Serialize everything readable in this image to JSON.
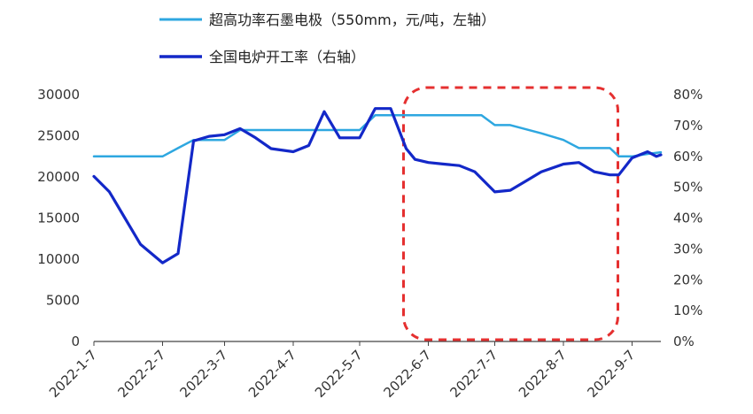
{
  "chart_data": {
    "type": "line",
    "legend": {
      "placement": "top-left",
      "entries": [
        {
          "label": "超高功率石墨电极（550mm，元/吨，左轴）",
          "color": "#2ea7e0"
        },
        {
          "label": "全国电炉开工率（右轴）",
          "color": "#1328c8"
        }
      ]
    },
    "x_tick_labels": [
      "2022-1-7",
      "2022-2-7",
      "2022-3-7",
      "2022-4-7",
      "2022-5-7",
      "2022-6-7",
      "2022-7-7",
      "2022-8-7",
      "2022-9-7"
    ],
    "left_axis": {
      "ylim": [
        0,
        30000
      ],
      "ticks": [
        "0",
        "5000",
        "10000",
        "15000",
        "20000",
        "25000",
        "30000"
      ]
    },
    "right_axis": {
      "ylim": [
        0,
        80
      ],
      "ticks": [
        "0%",
        "10%",
        "20%",
        "30%",
        "40%",
        "50%",
        "60%",
        "70%",
        "80%"
      ]
    },
    "series": [
      {
        "name": "超高功率石墨电极（550mm，元/吨，左轴）",
        "axis": "left",
        "color": "#2ea7e0",
        "x": [
          "2022-1-7",
          "2022-2-1",
          "2022-2-7",
          "2022-2-14",
          "2022-2-21",
          "2022-3-7",
          "2022-3-14",
          "2022-3-28",
          "2022-4-7",
          "2022-4-14",
          "2022-4-21",
          "2022-5-7",
          "2022-5-14",
          "2022-5-28",
          "2022-6-7",
          "2022-6-14",
          "2022-6-21",
          "2022-7-1",
          "2022-7-7",
          "2022-7-14",
          "2022-7-28",
          "2022-8-7",
          "2022-8-14",
          "2022-8-28",
          "2022-9-1",
          "2022-9-7",
          "2022-9-14",
          "2022-9-20"
        ],
        "values": [
          22500,
          22500,
          22500,
          23500,
          24500,
          24500,
          25700,
          25700,
          25700,
          25700,
          25700,
          25700,
          27500,
          27500,
          27500,
          27500,
          27500,
          27500,
          26300,
          26300,
          25300,
          24500,
          23500,
          23500,
          22500,
          22500,
          22800,
          23000
        ]
      },
      {
        "name": "全国电炉开工率（右轴）",
        "axis": "right",
        "color": "#1328c8",
        "x": [
          "2022-1-7",
          "2022-1-14",
          "2022-1-21",
          "2022-1-28",
          "2022-2-7",
          "2022-2-14",
          "2022-2-21",
          "2022-2-28",
          "2022-3-7",
          "2022-3-14",
          "2022-3-21",
          "2022-3-28",
          "2022-4-7",
          "2022-4-14",
          "2022-4-21",
          "2022-4-28",
          "2022-5-7",
          "2022-5-14",
          "2022-5-21",
          "2022-5-28",
          "2022-6-1",
          "2022-6-7",
          "2022-6-14",
          "2022-6-21",
          "2022-6-28",
          "2022-7-7",
          "2022-7-14",
          "2022-7-21",
          "2022-7-28",
          "2022-8-7",
          "2022-8-14",
          "2022-8-21",
          "2022-8-28",
          "2022-9-1",
          "2022-9-7",
          "2022-9-14",
          "2022-9-18",
          "2022-9-20"
        ],
        "values": [
          53.5,
          48.5,
          40,
          31.5,
          25.5,
          28.5,
          65,
          66.5,
          67,
          69,
          66,
          62.5,
          61.5,
          63.5,
          74.5,
          66,
          66,
          75.5,
          75.5,
          62.5,
          59,
          58,
          57.5,
          57,
          55,
          48.5,
          49,
          52,
          55,
          57.5,
          58,
          55,
          54,
          54,
          59.5,
          61.5,
          60,
          60.5
        ]
      }
    ],
    "annotations": [
      {
        "type": "dashed-rounded-box",
        "color": "#e53030",
        "x_from": "2022-5-28",
        "x_to": "2022-8-28",
        "y_from_left": 0,
        "y_to_left": 30000
      }
    ],
    "grid": false
  }
}
